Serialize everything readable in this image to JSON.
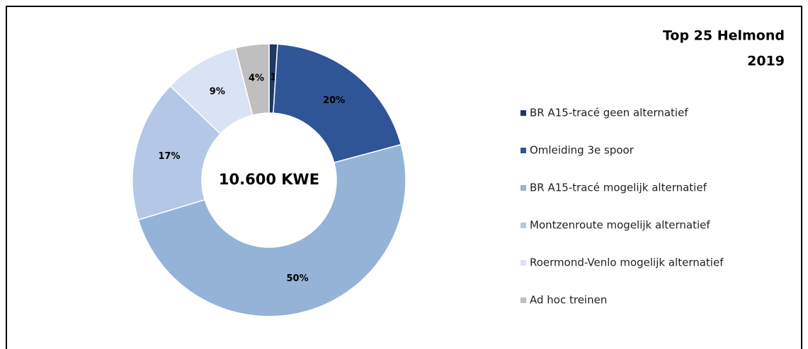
{
  "chart_data": {
    "type": "donut",
    "title": [
      "Top 25 Helmond",
      "2019"
    ],
    "center_label": "10.600 KWE",
    "categories": [
      "BR A15-tracé geen alternatief",
      "Omleiding 3e spoor",
      "BR A15-tracé mogelijk alternatief",
      "Montzenroute mogelijk alternatief",
      "Roermond-Venlo mogelijk alternatief",
      "Ad hoc treinen"
    ],
    "values": [
      1,
      20,
      50,
      17,
      9,
      4
    ],
    "value_labels": [
      "1%",
      "20%",
      "50%",
      "17%",
      "9%",
      "4%"
    ],
    "colors": [
      "#1f3864",
      "#2f5597",
      "#95b3d7",
      "#b4c7e7",
      "#dae3f3",
      "#bfbfbf"
    ],
    "legend": "right"
  }
}
